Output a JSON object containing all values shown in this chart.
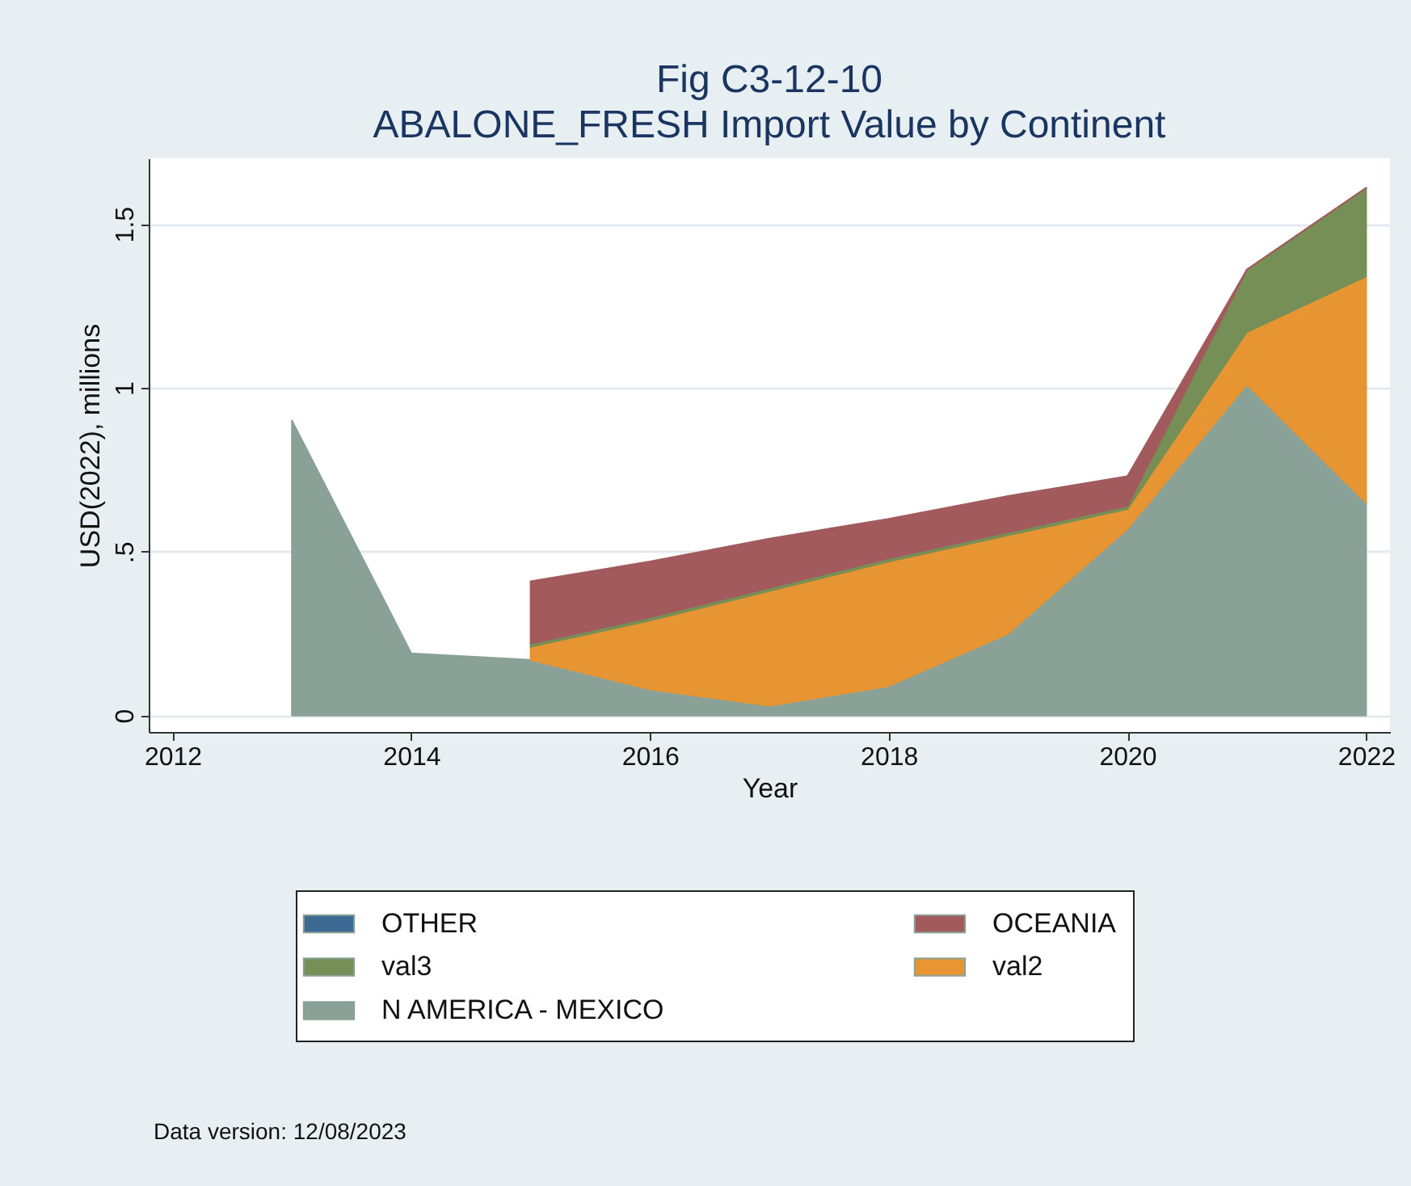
{
  "chart_data": {
    "type": "area",
    "title": [
      "Fig C3-12-10",
      "ABALONE_FRESH Import Value by Continent"
    ],
    "xlabel": "Year",
    "ylabel": "USD(2022), millions",
    "stacked": true,
    "x": [
      2013,
      2014,
      2015,
      2016,
      2017,
      2018,
      2019,
      2020,
      2021,
      2022
    ],
    "series": [
      {
        "name": "N AMERICA - MEXICO",
        "color": "#8aa197",
        "values": [
          0.9,
          0.19,
          0.17,
          0.08,
          0.03,
          0.09,
          0.25,
          0.57,
          1.01,
          0.65
        ]
      },
      {
        "name": "val2",
        "color": "#e69532",
        "values": [
          null,
          null,
          0.04,
          0.21,
          0.35,
          0.38,
          0.3,
          0.06,
          0.16,
          0.69
        ]
      },
      {
        "name": "val3",
        "color": "#768f56",
        "values": [
          null,
          null,
          0.01,
          0.01,
          0.01,
          0.01,
          0.01,
          0.01,
          0.19,
          0.27
        ]
      },
      {
        "name": "OCEANIA",
        "color": "#a35a5c",
        "values": [
          null,
          null,
          0.19,
          0.17,
          0.15,
          0.12,
          0.11,
          0.09,
          0,
          0
        ]
      },
      {
        "name": "OTHER",
        "color": "#3c6a92",
        "values": [
          null,
          null,
          null,
          null,
          null,
          null,
          null,
          null,
          null,
          null
        ]
      }
    ],
    "xlim": [
      2011.8,
      2022.2
    ],
    "xticks": [
      2012,
      2014,
      2016,
      2018,
      2020,
      2022
    ],
    "ylim": [
      -0.05,
      1.7
    ],
    "yticks": [
      0,
      {
        "value": 0.5,
        "label": ".5"
      },
      1,
      1.5
    ],
    "grid": "y",
    "legend": "bottom",
    "annotations": [
      "Data version: 12/08/2023"
    ]
  }
}
